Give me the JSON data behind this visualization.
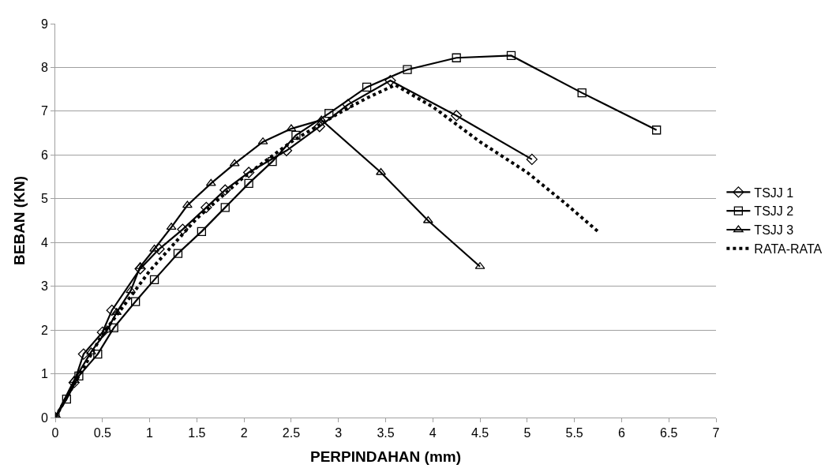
{
  "chart_data": {
    "type": "line",
    "xlabel": "PERPINDAHAN (mm)",
    "ylabel": "BEBAN (KN)",
    "xlim": [
      0,
      7
    ],
    "xticks": [
      0,
      0.5,
      1,
      1.5,
      2,
      2.5,
      3,
      3.5,
      4,
      4.5,
      5,
      5.5,
      6,
      6.5,
      7
    ],
    "ylim": [
      0,
      9
    ],
    "yticks": [
      0,
      1,
      2,
      3,
      4,
      5,
      6,
      7,
      8,
      9
    ],
    "grid": "y",
    "legend": "right",
    "series": [
      {
        "name": "TSJJ 1",
        "color": "#000000",
        "marker": "diamond",
        "line_style": "solid",
        "x": [
          0,
          0.2,
          0.3,
          0.5,
          0.6,
          0.9,
          1.1,
          1.35,
          1.6,
          1.8,
          2.05,
          2.45,
          2.8,
          3.1,
          3.55,
          4.25,
          5.05
        ],
        "values": [
          0,
          0.8,
          1.45,
          1.95,
          2.45,
          3.4,
          3.85,
          4.3,
          4.8,
          5.2,
          5.6,
          6.1,
          6.65,
          7.15,
          7.7,
          6.9,
          5.9
        ]
      },
      {
        "name": "TSJJ 2",
        "color": "#000000",
        "marker": "square",
        "line_style": "solid",
        "x": [
          0,
          0.12,
          0.25,
          0.45,
          0.62,
          0.85,
          1.05,
          1.3,
          1.55,
          1.8,
          2.05,
          2.3,
          2.55,
          2.9,
          3.3,
          3.73,
          4.25,
          4.83,
          5.58,
          6.37
        ],
        "values": [
          0,
          0.42,
          0.95,
          1.45,
          2.05,
          2.65,
          3.15,
          3.75,
          4.25,
          4.8,
          5.35,
          5.85,
          6.45,
          6.95,
          7.55,
          7.95,
          8.22,
          8.27,
          7.42,
          6.57
        ]
      },
      {
        "name": "TSJJ 3",
        "color": "#000000",
        "marker": "triangle",
        "line_style": "solid",
        "x": [
          0,
          0.2,
          0.38,
          0.55,
          0.65,
          0.8,
          0.9,
          1.05,
          1.23,
          1.4,
          1.65,
          1.9,
          2.2,
          2.5,
          2.82,
          3.45,
          3.95,
          4.5
        ],
        "values": [
          0,
          0.85,
          1.5,
          2.0,
          2.4,
          2.9,
          3.45,
          3.85,
          4.35,
          4.85,
          5.35,
          5.8,
          6.3,
          6.6,
          6.8,
          5.6,
          4.5,
          3.45
        ]
      },
      {
        "name": "RATA-RATA",
        "color": "#000000",
        "marker": "none",
        "line_style": "dotted",
        "x": [
          0,
          0.5,
          1,
          1.5,
          2,
          2.5,
          3,
          3.3,
          3.6,
          4,
          4.5,
          5,
          5.4,
          5.75
        ],
        "values": [
          0,
          1.9,
          3.35,
          4.55,
          5.5,
          6.3,
          6.95,
          7.3,
          7.6,
          7.1,
          6.3,
          5.6,
          4.9,
          4.25
        ]
      }
    ]
  }
}
